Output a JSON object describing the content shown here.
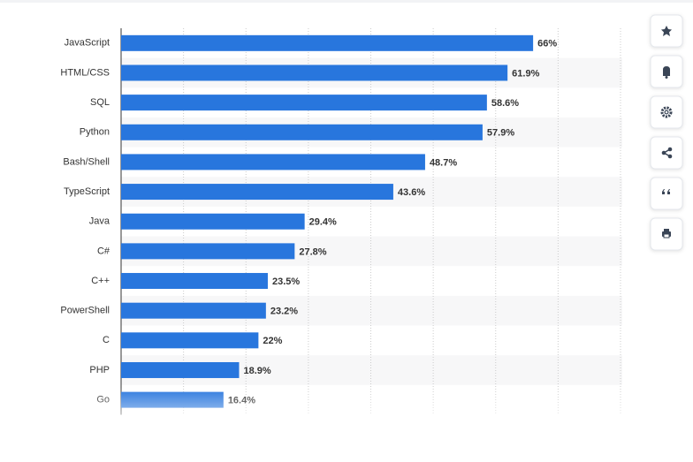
{
  "chart_data": {
    "type": "bar",
    "orientation": "horizontal",
    "categories": [
      "JavaScript",
      "HTML/CSS",
      "SQL",
      "Python",
      "Bash/Shell",
      "TypeScript",
      "Java",
      "C#",
      "C++",
      "PowerShell",
      "C",
      "PHP",
      "Go"
    ],
    "values": [
      66,
      61.9,
      58.6,
      57.9,
      48.7,
      43.6,
      29.4,
      27.8,
      23.5,
      23.2,
      22,
      18.9,
      16.4
    ],
    "value_labels": [
      "66%",
      "61.9%",
      "58.6%",
      "57.9%",
      "48.7%",
      "43.6%",
      "29.4%",
      "27.8%",
      "23.5%",
      "23.2%",
      "22%",
      "18.9%",
      "16.4%"
    ],
    "color": "#2876dd",
    "xlim": [
      0,
      80
    ],
    "xticks": [
      0,
      10,
      20,
      30,
      40,
      50,
      60,
      70,
      80
    ],
    "grid": true
  }
}
